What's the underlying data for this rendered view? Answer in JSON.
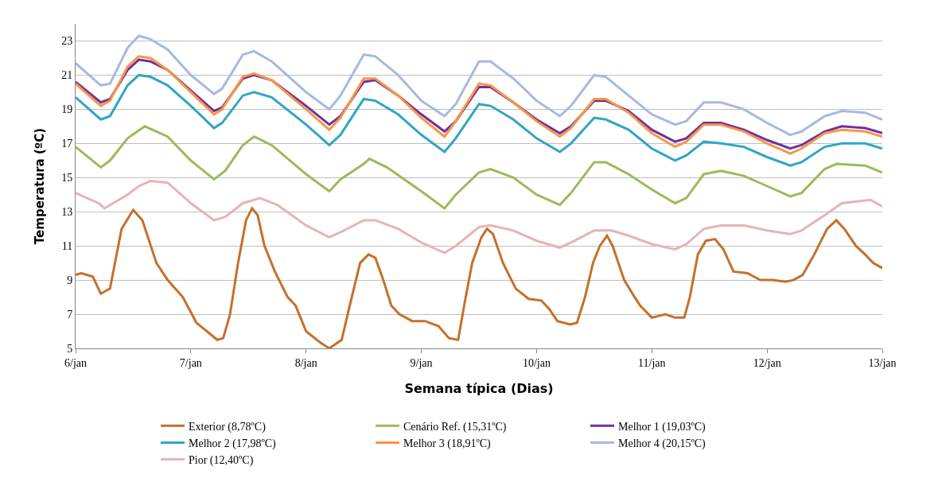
{
  "chart_data": {
    "type": "line",
    "xlabel": "Semana típica (Dias)",
    "ylabel": "Temperatura (ºC)",
    "xlim": [
      "--01-06",
      "--01-13"
    ],
    "ylim": [
      5,
      24
    ],
    "xticks": [
      {
        "value": "--01-06",
        "label": "6/jan"
      },
      {
        "value": "--01-07",
        "label": "7/jan"
      },
      {
        "value": "--01-08",
        "label": "8/jan"
      },
      {
        "value": "--01-09",
        "label": "9/jan"
      },
      {
        "value": "--01-10",
        "label": "10/jan"
      },
      {
        "value": "--01-11",
        "label": "11/jan"
      },
      {
        "value": "--01-12",
        "label": "12/jan"
      },
      {
        "value": "--01-13",
        "label": "13/jan"
      }
    ],
    "yticks": [
      5,
      7,
      9,
      11,
      13,
      15,
      17,
      19,
      21,
      23
    ],
    "grid": "y",
    "legend": "bottom",
    "marker": "none",
    "line_style": "solid",
    "series": [
      {
        "name": "Exterior (8,78ºC)",
        "color": "#c5702b",
        "x": [
          "--01-06T00:00",
          "--01-06T01:10",
          "--01-06T03:35",
          "--01-06T05:15",
          "--01-06T07:10",
          "--01-06T09:35",
          "--01-06T12:00",
          "--01-06T13:55",
          "--01-06T16:50",
          "--01-06T19:10",
          "--01-06T22:20",
          "--01-07T01:10",
          "--01-07T03:20",
          "--01-07T05:30",
          "--01-07T06:45",
          "--01-07T08:10",
          "--01-07T09:50",
          "--01-07T11:30",
          "--01-07T12:45",
          "--01-07T13:55",
          "--01-07T15:20",
          "--01-07T17:30",
          "--01-07T20:10",
          "--01-07T21:50",
          "--01-08T00:00",
          "--01-08T03:10",
          "--01-08T04:50",
          "--01-08T07:25",
          "--01-08T09:05",
          "--01-08T11:15",
          "--01-08T13:00",
          "--01-08T14:25",
          "--01-08T16:05",
          "--01-08T17:45",
          "--01-08T19:25",
          "--01-08T22:05",
          "--01-09T00:45",
          "--01-09T03:35",
          "--01-09T05:45",
          "--01-09T07:40",
          "--01-09T08:55",
          "--01-09T10:35",
          "--01-09T12:30",
          "--01-09T13:40",
          "--01-09T14:55",
          "--01-09T17:00",
          "--01-09T19:40",
          "--01-09T22:20",
          "--01-10T01:00",
          "--01-10T02:40",
          "--01-10T04:20",
          "--01-10T07:00",
          "--01-10T08:25",
          "--01-10T10:05",
          "--01-10T11:45",
          "--01-10T13:10",
          "--01-10T14:40",
          "--01-10T15:50",
          "--01-10T18:15",
          "--01-10T20:25",
          "--01-10T21:35",
          "--01-11T00:00",
          "--01-11T02:50",
          "--01-11T04:50",
          "--01-11T06:45",
          "--01-11T07:55",
          "--01-11T09:35",
          "--01-11T11:15",
          "--01-11T13:10",
          "--01-11T14:55",
          "--01-11T17:00",
          "--01-11T19:55",
          "--01-11T22:35",
          "--01-12T01:10",
          "--01-12T03:50",
          "--01-12T05:30",
          "--01-12T07:25",
          "--01-12T09:50",
          "--01-12T12:30",
          "--01-12T14:25",
          "--01-12T16:05",
          "--01-12T18:30",
          "--01-12T20:25",
          "--01-12T22:05",
          "--01-13T00:00"
        ],
        "values": [
          9.3,
          9.4,
          9.2,
          8.2,
          8.5,
          12.0,
          13.1,
          12.5,
          10.0,
          9.0,
          8.0,
          6.5,
          6.0,
          5.5,
          5.6,
          7.0,
          10.0,
          12.5,
          13.2,
          12.8,
          11.0,
          9.5,
          8.0,
          7.5,
          6.0,
          5.3,
          5.0,
          5.5,
          7.5,
          10.0,
          10.5,
          10.3,
          9.0,
          7.5,
          7.0,
          6.6,
          6.6,
          6.3,
          5.6,
          5.5,
          7.5,
          10.0,
          11.5,
          12.0,
          11.7,
          10.0,
          8.5,
          7.9,
          7.8,
          7.3,
          6.6,
          6.4,
          6.5,
          8.0,
          10.0,
          11.0,
          11.6,
          11.0,
          9.0,
          8.0,
          7.5,
          6.8,
          7.0,
          6.8,
          6.8,
          8.0,
          10.5,
          11.3,
          11.4,
          10.8,
          9.5,
          9.4,
          9.0,
          9.0,
          8.9,
          9.0,
          9.3,
          10.5,
          12.0,
          12.5,
          12.0,
          11.0,
          10.5,
          10.0,
          9.7
        ]
      },
      {
        "name": "Cenário Ref. (15,31ºC)",
        "color": "#9bbb59",
        "x": [
          "--01-06T00:00",
          "--01-06T05:15",
          "--01-06T07:10",
          "--01-06T10:50",
          "--01-06T14:25",
          "--01-06T19:10",
          "--01-07T00:00",
          "--01-07T04:50",
          "--01-07T07:10",
          "--01-07T10:50",
          "--01-07T13:10",
          "--01-07T16:50",
          "--01-08T00:00",
          "--01-08T04:50",
          "--01-08T07:10",
          "--01-08T12:00",
          "--01-08T13:10",
          "--01-08T16:50",
          "--01-09T00:00",
          "--01-09T04:50",
          "--01-09T07:10",
          "--01-09T12:00",
          "--01-09T14:25",
          "--01-09T19:10",
          "--01-10T00:00",
          "--01-10T04:50",
          "--01-10T07:10",
          "--01-10T12:00",
          "--01-10T14:25",
          "--01-10T19:10",
          "--01-11T00:00",
          "--01-11T04:50",
          "--01-11T07:10",
          "--01-11T10:50",
          "--01-11T14:25",
          "--01-11T19:10",
          "--01-12T00:00",
          "--01-12T04:50",
          "--01-12T07:10",
          "--01-12T12:00",
          "--01-12T14:25",
          "--01-12T20:25",
          "--01-13T00:00"
        ],
        "values": [
          16.8,
          15.6,
          16.0,
          17.3,
          18.0,
          17.4,
          16.0,
          14.9,
          15.4,
          16.9,
          17.4,
          16.9,
          15.2,
          14.2,
          14.9,
          15.8,
          16.1,
          15.6,
          14.2,
          13.2,
          14.0,
          15.3,
          15.5,
          15.0,
          14.0,
          13.4,
          14.1,
          15.9,
          15.9,
          15.2,
          14.3,
          13.5,
          13.8,
          15.2,
          15.4,
          15.1,
          14.5,
          13.9,
          14.1,
          15.5,
          15.8,
          15.7,
          15.3
        ]
      },
      {
        "name": "Melhor 1 (19,03ºC)",
        "color": "#7030a0",
        "x": [
          "--01-06T00:00",
          "--01-06T05:15",
          "--01-06T07:10",
          "--01-06T10:50",
          "--01-06T13:10",
          "--01-06T15:35",
          "--01-06T19:10",
          "--01-07T00:00",
          "--01-07T04:50",
          "--01-07T06:30",
          "--01-07T10:50",
          "--01-07T13:10",
          "--01-07T16:50",
          "--01-08T00:00",
          "--01-08T04:50",
          "--01-08T07:10",
          "--01-08T12:00",
          "--01-08T14:25",
          "--01-08T19:10",
          "--01-09T00:00",
          "--01-09T04:50",
          "--01-09T07:10",
          "--01-09T12:00",
          "--01-09T14:25",
          "--01-09T19:10",
          "--01-10T00:00",
          "--01-10T04:50",
          "--01-10T07:10",
          "--01-10T12:00",
          "--01-10T14:25",
          "--01-10T19:10",
          "--01-11T00:00",
          "--01-11T04:50",
          "--01-11T07:10",
          "--01-11T10:50",
          "--01-11T14:25",
          "--01-11T19:10",
          "--01-12T00:00",
          "--01-12T04:50",
          "--01-12T07:10",
          "--01-12T12:00",
          "--01-12T15:35",
          "--01-12T20:25",
          "--01-13T00:00"
        ],
        "values": [
          20.6,
          19.4,
          19.6,
          21.3,
          21.9,
          21.8,
          21.3,
          20.1,
          18.9,
          19.1,
          20.8,
          21.0,
          20.7,
          19.2,
          18.1,
          18.6,
          20.6,
          20.7,
          19.8,
          18.7,
          17.7,
          18.3,
          20.3,
          20.3,
          19.4,
          18.4,
          17.6,
          18.0,
          19.5,
          19.5,
          18.9,
          17.8,
          17.1,
          17.3,
          18.2,
          18.2,
          17.8,
          17.2,
          16.7,
          16.9,
          17.7,
          18.0,
          17.9,
          17.6
        ]
      },
      {
        "name": "Melhor 2 (17,98ºC)",
        "color": "#31a5c4",
        "x": [
          "--01-06T00:00",
          "--01-06T05:15",
          "--01-06T07:10",
          "--01-06T10:50",
          "--01-06T13:10",
          "--01-06T15:35",
          "--01-06T19:10",
          "--01-07T00:00",
          "--01-07T04:50",
          "--01-07T06:30",
          "--01-07T10:50",
          "--01-07T13:10",
          "--01-07T16:50",
          "--01-08T00:00",
          "--01-08T04:50",
          "--01-08T07:10",
          "--01-08T12:00",
          "--01-08T14:25",
          "--01-08T19:10",
          "--01-09T00:00",
          "--01-09T04:50",
          "--01-09T07:10",
          "--01-09T12:00",
          "--01-09T14:25",
          "--01-09T19:10",
          "--01-10T00:00",
          "--01-10T04:50",
          "--01-10T07:10",
          "--01-10T12:00",
          "--01-10T14:25",
          "--01-10T19:10",
          "--01-11T00:00",
          "--01-11T04:50",
          "--01-11T07:10",
          "--01-11T10:50",
          "--01-11T14:25",
          "--01-11T19:10",
          "--01-12T00:00",
          "--01-12T04:50",
          "--01-12T07:10",
          "--01-12T12:00",
          "--01-12T15:35",
          "--01-12T20:25",
          "--01-13T00:00"
        ],
        "values": [
          19.7,
          18.4,
          18.6,
          20.4,
          21.0,
          20.9,
          20.4,
          19.2,
          17.9,
          18.2,
          19.8,
          20.0,
          19.7,
          18.1,
          16.9,
          17.5,
          19.6,
          19.5,
          18.7,
          17.5,
          16.5,
          17.3,
          19.3,
          19.2,
          18.4,
          17.3,
          16.5,
          17.0,
          18.5,
          18.4,
          17.8,
          16.7,
          16.0,
          16.3,
          17.1,
          17.0,
          16.8,
          16.2,
          15.7,
          15.9,
          16.8,
          17.0,
          17.0,
          16.7
        ]
      },
      {
        "name": "Melhor 3 (18,91ºC)",
        "color": "#f79646",
        "x": [
          "--01-06T00:00",
          "--01-06T05:15",
          "--01-06T07:10",
          "--01-06T10:50",
          "--01-06T13:10",
          "--01-06T15:35",
          "--01-06T19:10",
          "--01-07T00:00",
          "--01-07T04:50",
          "--01-07T06:30",
          "--01-07T10:50",
          "--01-07T13:10",
          "--01-07T16:50",
          "--01-08T00:00",
          "--01-08T04:50",
          "--01-08T07:10",
          "--01-08T12:00",
          "--01-08T14:25",
          "--01-08T19:10",
          "--01-09T00:00",
          "--01-09T04:50",
          "--01-09T07:10",
          "--01-09T12:00",
          "--01-09T14:25",
          "--01-09T19:10",
          "--01-10T00:00",
          "--01-10T04:50",
          "--01-10T07:10",
          "--01-10T12:00",
          "--01-10T14:25",
          "--01-10T19:10",
          "--01-11T00:00",
          "--01-11T04:50",
          "--01-11T07:10",
          "--01-11T10:50",
          "--01-11T14:25",
          "--01-11T19:10",
          "--01-12T00:00",
          "--01-12T04:50",
          "--01-12T07:10",
          "--01-12T12:00",
          "--01-12T15:35",
          "--01-12T20:25",
          "--01-13T00:00"
        ],
        "values": [
          20.5,
          19.2,
          19.5,
          21.5,
          22.1,
          22.0,
          21.3,
          20.0,
          18.7,
          19.0,
          20.9,
          21.1,
          20.7,
          19.0,
          17.8,
          18.5,
          20.8,
          20.8,
          19.8,
          18.5,
          17.4,
          18.3,
          20.5,
          20.4,
          19.4,
          18.3,
          17.4,
          17.9,
          19.6,
          19.6,
          18.8,
          17.6,
          16.8,
          17.1,
          18.1,
          18.1,
          17.7,
          17.0,
          16.4,
          16.7,
          17.6,
          17.8,
          17.7,
          17.4
        ]
      },
      {
        "name": "Melhor 4 (20,15ºC)",
        "color": "#a6b9e0",
        "x": [
          "--01-06T00:00",
          "--01-06T05:15",
          "--01-06T07:10",
          "--01-06T10:50",
          "--01-06T13:10",
          "--01-06T15:35",
          "--01-06T19:10",
          "--01-07T00:00",
          "--01-07T04:50",
          "--01-07T06:30",
          "--01-07T10:50",
          "--01-07T13:10",
          "--01-07T16:50",
          "--01-08T00:00",
          "--01-08T04:50",
          "--01-08T07:10",
          "--01-08T12:00",
          "--01-08T14:25",
          "--01-08T19:10",
          "--01-09T00:00",
          "--01-09T04:50",
          "--01-09T07:10",
          "--01-09T12:00",
          "--01-09T14:25",
          "--01-09T19:10",
          "--01-10T00:00",
          "--01-10T04:50",
          "--01-10T07:10",
          "--01-10T12:00",
          "--01-10T14:25",
          "--01-10T19:10",
          "--01-11T00:00",
          "--01-11T04:50",
          "--01-11T07:10",
          "--01-11T10:50",
          "--01-11T14:25",
          "--01-11T19:10",
          "--01-12T00:00",
          "--01-12T04:50",
          "--01-12T07:10",
          "--01-12T12:00",
          "--01-12T15:35",
          "--01-12T20:25",
          "--01-13T00:00"
        ],
        "values": [
          21.7,
          20.4,
          20.5,
          22.6,
          23.3,
          23.1,
          22.5,
          21.0,
          19.9,
          20.2,
          22.2,
          22.4,
          21.8,
          20.0,
          19.0,
          19.8,
          22.2,
          22.1,
          21.0,
          19.5,
          18.6,
          19.3,
          21.8,
          21.8,
          20.8,
          19.5,
          18.6,
          19.2,
          21.0,
          20.9,
          19.8,
          18.7,
          18.1,
          18.3,
          19.4,
          19.4,
          19.0,
          18.2,
          17.5,
          17.7,
          18.6,
          18.9,
          18.8,
          18.4
        ]
      },
      {
        "name": "Pior (12,40ºC)",
        "color": "#e6b4b3",
        "x": [
          "--01-06T00:00",
          "--01-06T04:50",
          "--01-06T06:00",
          "--01-06T10:50",
          "--01-06T13:10",
          "--01-06T15:35",
          "--01-06T19:10",
          "--01-07T00:00",
          "--01-07T04:50",
          "--01-07T07:10",
          "--01-07T10:50",
          "--01-07T14:25",
          "--01-07T18:00",
          "--01-08T00:00",
          "--01-08T04:50",
          "--01-08T07:10",
          "--01-08T12:00",
          "--01-08T14:25",
          "--01-08T19:10",
          "--01-09T00:00",
          "--01-09T04:50",
          "--01-09T07:10",
          "--01-09T12:00",
          "--01-09T14:25",
          "--01-09T19:10",
          "--01-10T00:00",
          "--01-10T04:50",
          "--01-10T07:10",
          "--01-10T12:00",
          "--01-10T15:35",
          "--01-10T19:10",
          "--01-11T00:00",
          "--01-11T04:50",
          "--01-11T07:10",
          "--01-11T10:50",
          "--01-11T14:25",
          "--01-11T19:10",
          "--01-12T00:00",
          "--01-12T04:50",
          "--01-12T07:10",
          "--01-12T12:00",
          "--01-12T15:35",
          "--01-12T21:35",
          "--01-13T00:00"
        ],
        "values": [
          14.1,
          13.5,
          13.2,
          14.0,
          14.5,
          14.8,
          14.7,
          13.5,
          12.5,
          12.7,
          13.5,
          13.8,
          13.4,
          12.2,
          11.5,
          11.8,
          12.5,
          12.5,
          12.0,
          11.2,
          10.6,
          11.0,
          12.1,
          12.2,
          11.9,
          11.3,
          10.9,
          11.2,
          11.9,
          11.9,
          11.6,
          11.1,
          10.8,
          11.1,
          12.0,
          12.2,
          12.2,
          11.9,
          11.7,
          11.9,
          12.8,
          13.5,
          13.7,
          13.3
        ]
      }
    ]
  }
}
